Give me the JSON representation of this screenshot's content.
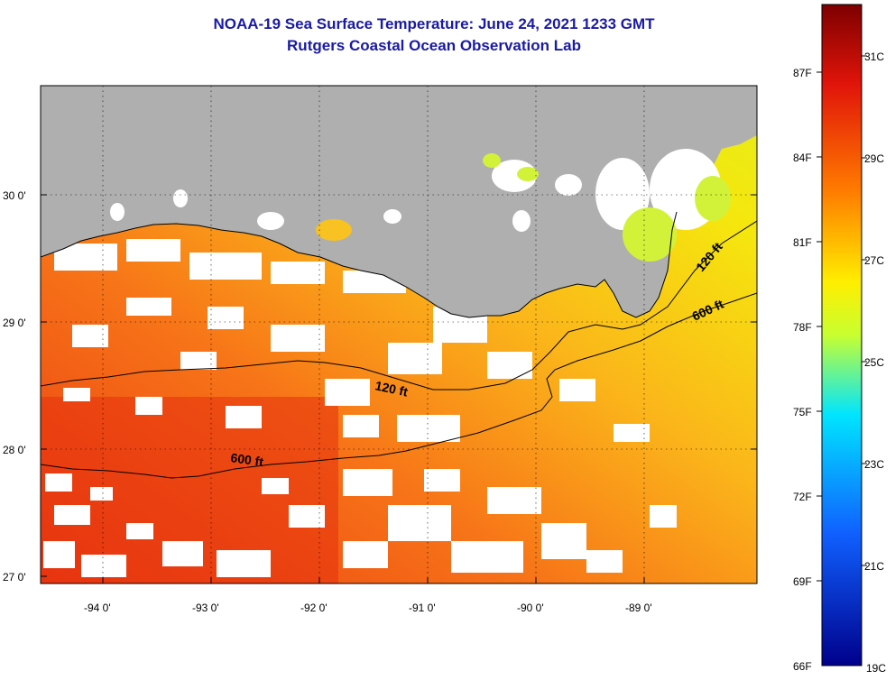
{
  "title": {
    "line1": "NOAA-19 Sea Surface Temperature:  June 24, 2021 1233 GMT",
    "line2": "Rutgers Coastal Ocean Observation Lab"
  },
  "map": {
    "lat_labels": [
      "30 0'",
      "29 0'",
      "28 0'",
      "27 0'"
    ],
    "lon_labels": [
      "-94 0'",
      "-93 0'",
      "-92 0'",
      "-91 0'",
      "-90 0'",
      "-89 0'"
    ],
    "contour_labels": [
      "120 ft",
      "600 ft",
      "120 ft",
      "600 ft"
    ],
    "land_color": "#afafaf",
    "cloud_color": "#ffffff"
  },
  "colorbar": {
    "f_labels": [
      "87F",
      "84F",
      "81F",
      "78F",
      "75F",
      "72F",
      "69F",
      "66F"
    ],
    "c_labels": [
      "31C",
      "29C",
      "27C",
      "25C",
      "23C",
      "21C",
      "19C"
    ],
    "colors": [
      "#8b0000",
      "#e81c0a",
      "#ff7a00",
      "#ffee00",
      "#00e5ff",
      "#0040ff",
      "#00008b"
    ]
  }
}
